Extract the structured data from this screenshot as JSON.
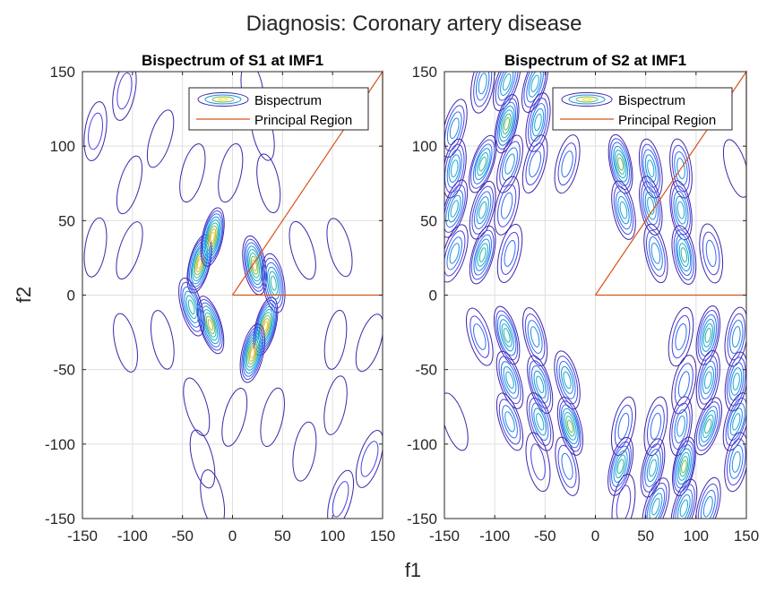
{
  "figure": {
    "title": "Diagnosis: Coronary artery disease",
    "xlabel": "f1",
    "ylabel": "f2"
  },
  "chart_data": [
    {
      "type": "contour",
      "title": "Bispectrum of S1 at IMF1",
      "xlim": [
        -150,
        150
      ],
      "ylim": [
        -150,
        150
      ],
      "xticks": [
        -150,
        -100,
        -50,
        0,
        50,
        100,
        150
      ],
      "yticks": [
        -150,
        -100,
        -50,
        0,
        50,
        100,
        150
      ],
      "grid": true,
      "legend_position": "top-right",
      "series": [
        {
          "name": "Bispectrum",
          "blobs": [
            {
              "x": -33,
              "y": 21,
              "level": 9
            },
            {
              "x": -20,
              "y": 39,
              "level": 9
            },
            {
              "x": 22,
              "y": 20,
              "level": 8
            },
            {
              "x": 41,
              "y": 8,
              "level": 6
            },
            {
              "x": -22,
              "y": -20,
              "level": 8
            },
            {
              "x": -41,
              "y": -8,
              "level": 6
            },
            {
              "x": 33,
              "y": -21,
              "level": 9
            },
            {
              "x": 20,
              "y": -39,
              "level": 9
            },
            {
              "x": -108,
              "y": 137,
              "level": 2
            },
            {
              "x": -137,
              "y": 110,
              "level": 2
            },
            {
              "x": -72,
              "y": 105,
              "level": 1
            },
            {
              "x": -103,
              "y": 74,
              "level": 1
            },
            {
              "x": -40,
              "y": 82,
              "level": 1
            },
            {
              "x": -2,
              "y": 82,
              "level": 1
            },
            {
              "x": 36,
              "y": 75,
              "level": 1
            },
            {
              "x": -137,
              "y": 32,
              "level": 1
            },
            {
              "x": -103,
              "y": 30,
              "level": 1
            },
            {
              "x": 70,
              "y": 30,
              "level": 1
            },
            {
              "x": 107,
              "y": 32,
              "level": 1
            },
            {
              "x": -107,
              "y": -32,
              "level": 1
            },
            {
              "x": -70,
              "y": -30,
              "level": 1
            },
            {
              "x": 103,
              "y": -30,
              "level": 1
            },
            {
              "x": 137,
              "y": -32,
              "level": 1
            },
            {
              "x": -36,
              "y": -75,
              "level": 1
            },
            {
              "x": 2,
              "y": -82,
              "level": 1
            },
            {
              "x": 40,
              "y": -82,
              "level": 1
            },
            {
              "x": 103,
              "y": -74,
              "level": 1
            },
            {
              "x": 72,
              "y": -105,
              "level": 1
            },
            {
              "x": 137,
              "y": -110,
              "level": 2
            },
            {
              "x": 108,
              "y": -137,
              "level": 2
            },
            {
              "x": -30,
              "y": -110,
              "level": 1
            },
            {
              "x": 30,
              "y": 110,
              "level": 1
            },
            {
              "x": -20,
              "y": -137,
              "level": 1
            },
            {
              "x": 20,
              "y": 137,
              "level": 1
            }
          ]
        },
        {
          "name": "Principal Region",
          "polygon": [
            [
              0,
              0
            ],
            [
              150,
              150
            ],
            [
              150,
              0
            ],
            [
              0,
              0
            ]
          ]
        }
      ]
    },
    {
      "type": "contour",
      "title": "Bispectrum of S2 at IMF1",
      "xlim": [
        -150,
        150
      ],
      "ylim": [
        -150,
        150
      ],
      "xticks": [
        -150,
        -100,
        -50,
        0,
        50,
        100,
        150
      ],
      "yticks": [
        -150,
        -100,
        -50,
        0,
        50,
        100,
        150
      ],
      "grid": true,
      "legend_position": "top-right",
      "series": [
        {
          "name": "Bispectrum",
          "blobs": [
            {
              "x": -112,
              "y": 142,
              "level": 4
            },
            {
              "x": -88,
              "y": 143,
              "level": 5
            },
            {
              "x": -60,
              "y": 142,
              "level": 5
            },
            {
              "x": -140,
              "y": 112,
              "level": 4
            },
            {
              "x": -88,
              "y": 115,
              "level": 7
            },
            {
              "x": -57,
              "y": 116,
              "level": 5
            },
            {
              "x": -140,
              "y": 85,
              "level": 5
            },
            {
              "x": -112,
              "y": 88,
              "level": 6
            },
            {
              "x": -85,
              "y": 88,
              "level": 4
            },
            {
              "x": -60,
              "y": 88,
              "level": 3
            },
            {
              "x": -28,
              "y": 88,
              "level": 3
            },
            {
              "x": 25,
              "y": 88,
              "level": 7
            },
            {
              "x": 55,
              "y": 85,
              "level": 5
            },
            {
              "x": 85,
              "y": 85,
              "level": 4
            },
            {
              "x": -140,
              "y": 58,
              "level": 5
            },
            {
              "x": -112,
              "y": 57,
              "level": 5
            },
            {
              "x": -88,
              "y": 60,
              "level": 3
            },
            {
              "x": 28,
              "y": 57,
              "level": 5
            },
            {
              "x": 55,
              "y": 60,
              "level": 5
            },
            {
              "x": 85,
              "y": 57,
              "level": 5
            },
            {
              "x": -140,
              "y": 28,
              "level": 4
            },
            {
              "x": -112,
              "y": 27,
              "level": 6
            },
            {
              "x": -85,
              "y": 28,
              "level": 3
            },
            {
              "x": 60,
              "y": 28,
              "level": 4
            },
            {
              "x": 88,
              "y": 27,
              "level": 6
            },
            {
              "x": 115,
              "y": 28,
              "level": 3
            },
            {
              "x": -115,
              "y": -28,
              "level": 3
            },
            {
              "x": -88,
              "y": -27,
              "level": 6
            },
            {
              "x": -60,
              "y": -28,
              "level": 4
            },
            {
              "x": 85,
              "y": -28,
              "level": 3
            },
            {
              "x": 112,
              "y": -27,
              "level": 6
            },
            {
              "x": 140,
              "y": -28,
              "level": 4
            },
            {
              "x": -85,
              "y": -57,
              "level": 5
            },
            {
              "x": -55,
              "y": -60,
              "level": 5
            },
            {
              "x": -28,
              "y": -57,
              "level": 5
            },
            {
              "x": 88,
              "y": -60,
              "level": 3
            },
            {
              "x": 112,
              "y": -57,
              "level": 5
            },
            {
              "x": 140,
              "y": -58,
              "level": 5
            },
            {
              "x": -85,
              "y": -85,
              "level": 4
            },
            {
              "x": -55,
              "y": -85,
              "level": 5
            },
            {
              "x": -25,
              "y": -88,
              "level": 7
            },
            {
              "x": 28,
              "y": -88,
              "level": 3
            },
            {
              "x": 60,
              "y": -88,
              "level": 3
            },
            {
              "x": 85,
              "y": -88,
              "level": 4
            },
            {
              "x": 112,
              "y": -88,
              "level": 6
            },
            {
              "x": 140,
              "y": -85,
              "level": 5
            },
            {
              "x": 25,
              "y": -115,
              "level": 6
            },
            {
              "x": 57,
              "y": -116,
              "level": 5
            },
            {
              "x": 88,
              "y": -115,
              "level": 7
            },
            {
              "x": 140,
              "y": -112,
              "level": 4
            },
            {
              "x": 60,
              "y": -142,
              "level": 5
            },
            {
              "x": 88,
              "y": -143,
              "level": 5
            },
            {
              "x": 112,
              "y": -142,
              "level": 4
            },
            {
              "x": -28,
              "y": -115,
              "level": 3
            },
            {
              "x": -57,
              "y": -112,
              "level": 2
            },
            {
              "x": 28,
              "y": -140,
              "level": 2
            },
            {
              "x": -140,
              "y": -85,
              "level": 1
            },
            {
              "x": 140,
              "y": 85,
              "level": 1
            }
          ]
        },
        {
          "name": "Principal Region",
          "polygon": [
            [
              0,
              0
            ],
            [
              150,
              150
            ],
            [
              150,
              0
            ],
            [
              0,
              0
            ]
          ]
        }
      ]
    }
  ]
}
